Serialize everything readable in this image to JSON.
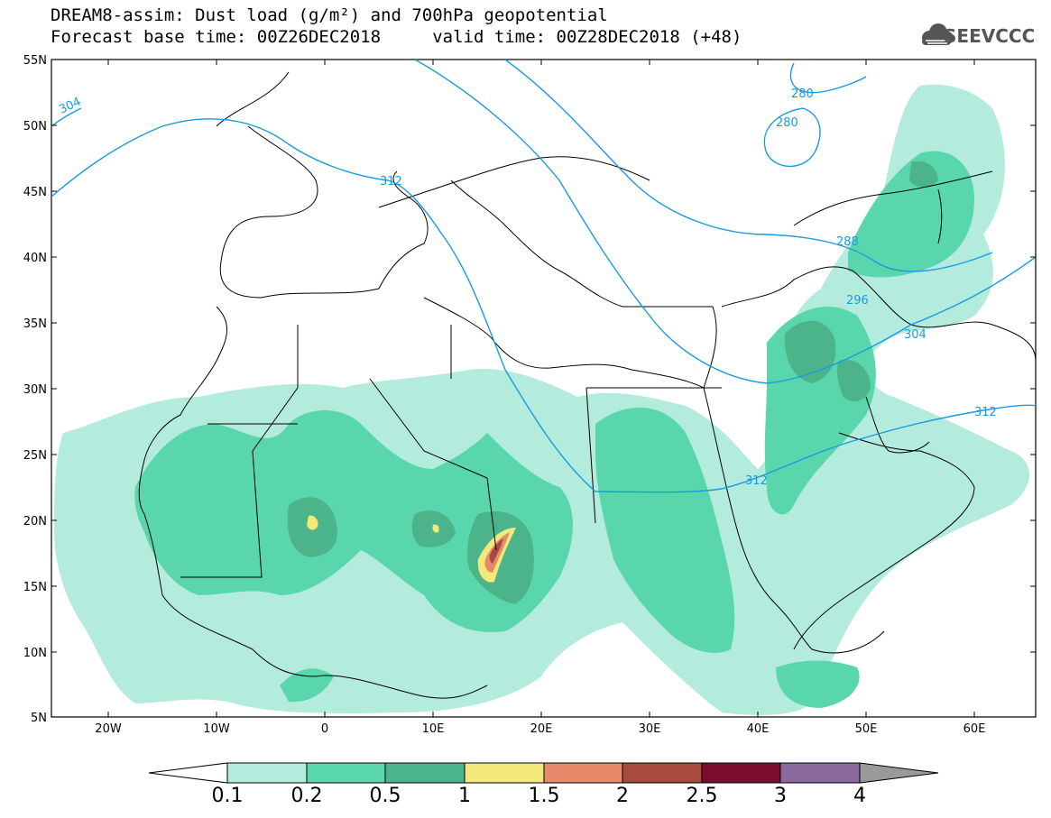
{
  "header": {
    "title_line1": "DREAM8-assim: Dust load (g/m²) and 700hPa geopotential",
    "title_line2": "Forecast base time: 00Z26DEC2018     valid time: 00Z28DEC2018 (+48)",
    "logo_text": "SEEVCCC"
  },
  "axes": {
    "lat_labels": [
      "55N",
      "50N",
      "45N",
      "40N",
      "35N",
      "30N",
      "25N",
      "20N",
      "15N",
      "10N",
      "5N"
    ],
    "lon_labels": [
      "20W",
      "10W",
      "0",
      "10E",
      "20E",
      "30E",
      "40E",
      "50E",
      "60E"
    ]
  },
  "contours": {
    "labels": [
      "304",
      "312",
      "280",
      "280",
      "288",
      "296",
      "304",
      "312",
      "312"
    ]
  },
  "colorbar": {
    "ticks": [
      "0.1",
      "0.2",
      "0.5",
      "1",
      "1.5",
      "2",
      "2.5",
      "3",
      "4"
    ],
    "colors": [
      "#b3ebdc",
      "#5ad6ad",
      "#4bb48b",
      "#f3e87a",
      "#e68a6a",
      "#a84a3e",
      "#7c0c2c",
      "#8c6aa0"
    ]
  },
  "palette": {
    "land_fill": "#ffffff",
    "contour_line": "#1a9be0",
    "border": "#000000"
  }
}
